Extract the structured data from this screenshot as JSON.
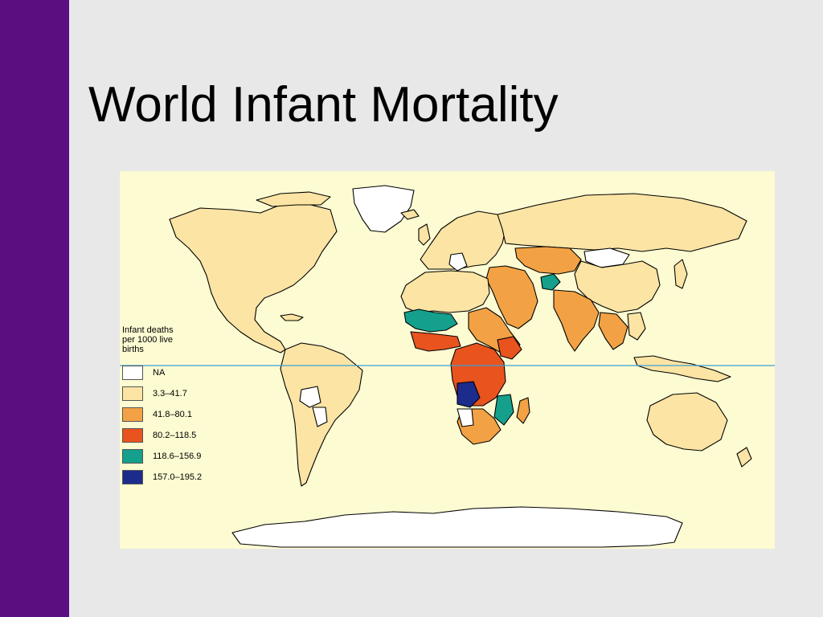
{
  "slide": {
    "title": "World Infant Mortality",
    "accent_bar_color": "#5a0e7f",
    "background_color": "#e8e8e8"
  },
  "map": {
    "ocean_color": "#fdfbd2",
    "equator_color": "#3aa0d8",
    "legend": {
      "title": "Infant deaths\nper 1000 live\nbirths",
      "items": [
        {
          "label": "NA",
          "color": "#ffffff"
        },
        {
          "label": "3.3–41.7",
          "color": "#fbe4a4"
        },
        {
          "label": "41.8–80.1",
          "color": "#f2a244"
        },
        {
          "label": "80.2–118.5",
          "color": "#e8531e"
        },
        {
          "label": "118.6–156.9",
          "color": "#14a08c"
        },
        {
          "label": "157.0–195.2",
          "color": "#1c2c8c"
        }
      ]
    }
  }
}
